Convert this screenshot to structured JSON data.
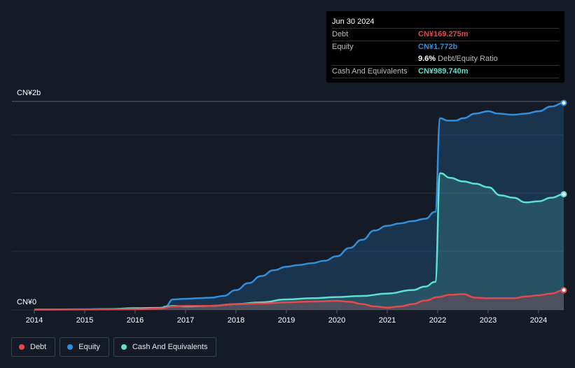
{
  "tooltip": {
    "date": "Jun 30 2024",
    "rows": [
      {
        "label": "Debt",
        "value": "CN¥169.275m",
        "color": "#e5484d"
      },
      {
        "label": "Equity",
        "value": "CN¥1.772b",
        "color": "#2f8fdd"
      },
      {
        "label": "",
        "value": "9.6%",
        "sub": "Debt/Equity Ratio",
        "color": "#ffffff"
      },
      {
        "label": "Cash And Equivalents",
        "value": "CN¥989.740m",
        "color": "#5ee0cf"
      }
    ]
  },
  "legend": [
    {
      "label": "Debt",
      "color": "#e5484d"
    },
    {
      "label": "Equity",
      "color": "#2f8fdd"
    },
    {
      "label": "Cash And Equivalents",
      "color": "#5ee0cf"
    }
  ],
  "chart_data": {
    "type": "area",
    "ylabel_top": "CN¥2b",
    "ylabel_bottom": "CN¥0",
    "ylim": [
      0,
      1.772
    ],
    "xlim": [
      2014,
      2024.5
    ],
    "x_ticks": [
      "2014",
      "2015",
      "2016",
      "2017",
      "2018",
      "2019",
      "2020",
      "2021",
      "2022",
      "2023",
      "2024"
    ],
    "grid": true,
    "series": [
      {
        "name": "Equity",
        "color": "#2f8fdd",
        "x": [
          2014,
          2014.5,
          2015,
          2015.5,
          2016,
          2016.5,
          2016.6,
          2016.75,
          2017,
          2017.25,
          2017.5,
          2017.75,
          2018,
          2018.25,
          2018.5,
          2018.75,
          2019,
          2019.25,
          2019.5,
          2019.75,
          2020,
          2020.25,
          2020.5,
          2020.75,
          2021,
          2021.25,
          2021.5,
          2021.75,
          2021.95,
          2022.05,
          2022.2,
          2022.35,
          2022.5,
          2022.75,
          2023,
          2023.2,
          2023.5,
          2023.75,
          2024,
          2024.25,
          2024.5
        ],
        "y": [
          0.005,
          0.005,
          0.006,
          0.008,
          0.012,
          0.015,
          0.03,
          0.09,
          0.095,
          0.1,
          0.105,
          0.12,
          0.17,
          0.23,
          0.29,
          0.34,
          0.37,
          0.385,
          0.4,
          0.42,
          0.46,
          0.53,
          0.6,
          0.68,
          0.72,
          0.74,
          0.76,
          0.78,
          0.84,
          1.64,
          1.62,
          1.62,
          1.64,
          1.68,
          1.7,
          1.68,
          1.67,
          1.68,
          1.7,
          1.74,
          1.772
        ]
      },
      {
        "name": "Cash And Equivalents",
        "color": "#5ee0cf",
        "x": [
          2014,
          2015,
          2015.5,
          2016,
          2016.5,
          2016.75,
          2017,
          2017.5,
          2018,
          2018.5,
          2019,
          2019.5,
          2020,
          2020.5,
          2021,
          2021.5,
          2021.75,
          2021.95,
          2022.05,
          2022.25,
          2022.5,
          2022.75,
          2023,
          2023.25,
          2023.5,
          2023.75,
          2024,
          2024.25,
          2024.5
        ],
        "y": [
          0.003,
          0.004,
          0.008,
          0.015,
          0.018,
          0.035,
          0.03,
          0.035,
          0.05,
          0.065,
          0.09,
          0.1,
          0.11,
          0.12,
          0.14,
          0.17,
          0.2,
          0.24,
          1.17,
          1.13,
          1.1,
          1.08,
          1.05,
          0.98,
          0.96,
          0.92,
          0.93,
          0.96,
          0.99
        ]
      },
      {
        "name": "Debt",
        "color": "#e5484d",
        "x": [
          2014,
          2015,
          2016,
          2016.5,
          2016.75,
          2017,
          2017.5,
          2018,
          2018.5,
          2019,
          2019.5,
          2020,
          2020.25,
          2020.5,
          2020.75,
          2021,
          2021.25,
          2021.5,
          2021.75,
          2022,
          2022.25,
          2022.5,
          2022.75,
          2023,
          2023.25,
          2023.5,
          2023.75,
          2024,
          2024.25,
          2024.5
        ],
        "y": [
          0.004,
          0.004,
          0.006,
          0.012,
          0.03,
          0.035,
          0.035,
          0.05,
          0.055,
          0.065,
          0.072,
          0.078,
          0.07,
          0.05,
          0.03,
          0.02,
          0.03,
          0.05,
          0.08,
          0.11,
          0.13,
          0.135,
          0.105,
          0.1,
          0.1,
          0.1,
          0.115,
          0.125,
          0.14,
          0.169
        ]
      }
    ]
  }
}
